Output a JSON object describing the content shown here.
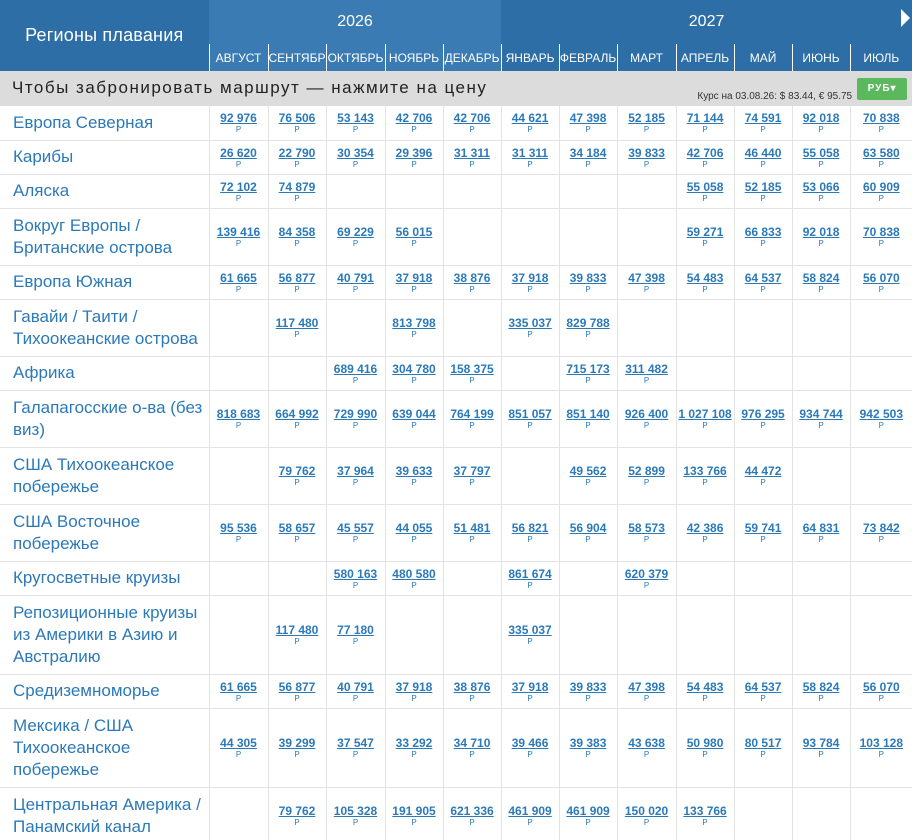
{
  "header": {
    "region_label": "Регионы плавания",
    "years": [
      {
        "label": "2026",
        "span": 5
      },
      {
        "label": "2027",
        "span": 7
      }
    ],
    "months": [
      "АВГУСТ",
      "СЕНТЯБРЬ",
      "ОКТЯБРЬ",
      "НОЯБРЬ",
      "ДЕКАБРЬ",
      "ЯНВАРЬ",
      "ФЕВРАЛЬ",
      "МАРТ",
      "АПРЕЛЬ",
      "МАЙ",
      "ИЮНЬ",
      "ИЮЛЬ"
    ],
    "month_years": [
      2026,
      2026,
      2026,
      2026,
      2026,
      2027,
      2027,
      2027,
      2027,
      2027,
      2027,
      2027
    ]
  },
  "info_bar": {
    "text": "Чтобы забронировать маршрут — нажмите на цену",
    "rate": "Курс на 03.08.26: $ 83.44, € 95.75",
    "currency_button": "РУБ▾"
  },
  "currency_symbol": "Р",
  "rows": [
    {
      "region": "Европа Северная",
      "prices": [
        "92 976",
        "76 506",
        "53 143",
        "42 706",
        "42 706",
        "44 621",
        "47 398",
        "52 185",
        "71 144",
        "74 591",
        "92 018",
        "70 838"
      ]
    },
    {
      "region": "Карибы",
      "prices": [
        "26 620",
        "22 790",
        "30 354",
        "29 396",
        "31 311",
        "31 311",
        "34 184",
        "39 833",
        "42 706",
        "46 440",
        "55 058",
        "63 580"
      ]
    },
    {
      "region": "Аляска",
      "prices": [
        "72 102",
        "74 879",
        "",
        "",
        "",
        "",
        "",
        "",
        "55 058",
        "52 185",
        "53 066",
        "60 909"
      ]
    },
    {
      "region": "Вокруг Европы / Британские острова",
      "prices": [
        "139 416",
        "84 358",
        "69 229",
        "56 015",
        "",
        "",
        "",
        "",
        "59 271",
        "66 833",
        "92 018",
        "70 838"
      ]
    },
    {
      "region": "Европа Южная",
      "prices": [
        "61 665",
        "56 877",
        "40 791",
        "37 918",
        "38 876",
        "37 918",
        "39 833",
        "47 398",
        "54 483",
        "64 537",
        "58 824",
        "56 070"
      ]
    },
    {
      "region": "Гавайи / Таити / Тихоокеанские острова",
      "prices": [
        "",
        "117 480",
        "",
        "813 798",
        "",
        "335 037",
        "829 788",
        "",
        "",
        "",
        "",
        ""
      ]
    },
    {
      "region": "Африка",
      "prices": [
        "",
        "",
        "689 416",
        "304 780",
        "158 375",
        "",
        "715 173",
        "311 482",
        "",
        "",
        "",
        ""
      ]
    },
    {
      "region": "Галапагосские о-ва (без виз)",
      "prices": [
        "818 683",
        "664 992",
        "729 990",
        "639 044",
        "764 199",
        "851 057",
        "851 140",
        "926 400",
        "1 027 108",
        "976 295",
        "934 744",
        "942 503"
      ]
    },
    {
      "region": "США Тихоокеанское побережье",
      "prices": [
        "",
        "79 762",
        "37 964",
        "39 633",
        "37 797",
        "",
        "49 562",
        "52 899",
        "133 766",
        "44 472",
        "",
        ""
      ]
    },
    {
      "region": "США Восточное побережье",
      "prices": [
        "95 536",
        "58 657",
        "45 557",
        "44 055",
        "51 481",
        "56 821",
        "56 904",
        "58 573",
        "42 386",
        "59 741",
        "64 831",
        "73 842"
      ]
    },
    {
      "region": "Кругосветные круизы",
      "prices": [
        "",
        "",
        "580 163",
        "480 580",
        "",
        "861 674",
        "",
        "620 379",
        "",
        "",
        "",
        ""
      ]
    },
    {
      "region": "Репозиционные круизы из Америки в Азию и Австралию",
      "prices": [
        "",
        "117 480",
        "77 180",
        "",
        "",
        "335 037",
        "",
        "",
        "",
        "",
        "",
        ""
      ]
    },
    {
      "region": "Средиземноморье",
      "prices": [
        "61 665",
        "56 877",
        "40 791",
        "37 918",
        "38 876",
        "37 918",
        "39 833",
        "47 398",
        "54 483",
        "64 537",
        "58 824",
        "56 070"
      ]
    },
    {
      "region": "Мексика / США Тихоокеанское побережье",
      "prices": [
        "44 305",
        "39 299",
        "37 547",
        "33 292",
        "34 710",
        "39 466",
        "39 383",
        "43 638",
        "50 980",
        "80 517",
        "93 784",
        "103 128"
      ]
    },
    {
      "region": "Центральная Америка / Панамский канал",
      "prices": [
        "",
        "79 762",
        "105 328",
        "191 905",
        "621 336",
        "461 909",
        "461 909",
        "150 020",
        "133 766",
        "",
        "",
        ""
      ]
    }
  ]
}
